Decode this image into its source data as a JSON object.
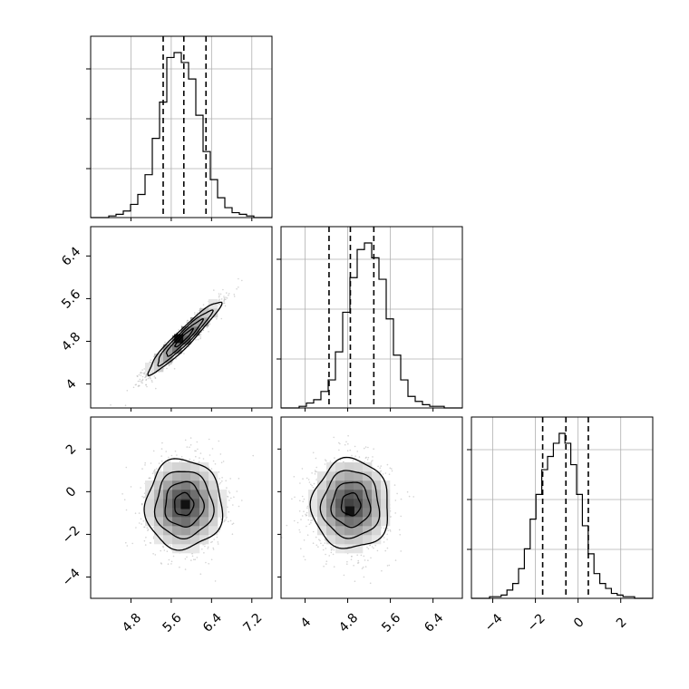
{
  "chart_data": {
    "type": "corner",
    "description_free": true,
    "params": [
      {
        "name": "",
        "range": [
          4.0,
          7.6
        ],
        "ticks": [
          4.8,
          5.6,
          6.4,
          7.2
        ],
        "quantiles": [
          5.44,
          5.85,
          6.29
        ],
        "hist": [
          1,
          2,
          4,
          8,
          14,
          26,
          48,
          70,
          97,
          100,
          94,
          84,
          62,
          40,
          23,
          12,
          6,
          3,
          2,
          1
        ]
      },
      {
        "name": "",
        "range": [
          3.55,
          6.95
        ],
        "ticks": [
          4.0,
          4.8,
          5.6,
          6.4
        ],
        "quantiles": [
          4.45,
          4.85,
          5.29
        ],
        "hist": [
          1,
          3,
          5,
          10,
          17,
          34,
          58,
          79,
          96,
          100,
          91,
          78,
          54,
          32,
          17,
          7,
          4,
          2,
          1,
          1
        ]
      },
      {
        "name": "",
        "range": [
          -5.0,
          3.5
        ],
        "ticks": [
          -4,
          -2,
          0,
          2
        ],
        "quantiles": [
          -1.66,
          -0.57,
          0.48
        ],
        "hist": [
          1,
          1,
          2,
          5,
          9,
          18,
          30,
          48,
          63,
          78,
          86,
          94,
          100,
          94,
          81,
          63,
          44,
          27,
          15,
          9,
          6,
          3,
          2,
          1,
          1
        ]
      }
    ],
    "panels": [
      {
        "row": 1,
        "col": 0,
        "center": [
          5.85,
          4.86
        ],
        "sd": [
          0.36,
          0.34
        ],
        "corr": 0.95,
        "peak": [
          5.75,
          4.85
        ]
      },
      {
        "row": 2,
        "col": 0,
        "center": [
          5.85,
          -0.6
        ],
        "sd": [
          0.38,
          1.05
        ],
        "corr": 0.0,
        "peak": [
          5.88,
          -0.6
        ]
      },
      {
        "row": 2,
        "col": 1,
        "center": [
          4.86,
          -0.6
        ],
        "sd": [
          0.36,
          1.05
        ],
        "corr": 0.0,
        "peak": [
          4.84,
          -0.9
        ]
      }
    ],
    "grid": true,
    "colors": {
      "ink": "#000000",
      "grid": "#b0b0b0",
      "points": "#b8b8b8"
    }
  }
}
